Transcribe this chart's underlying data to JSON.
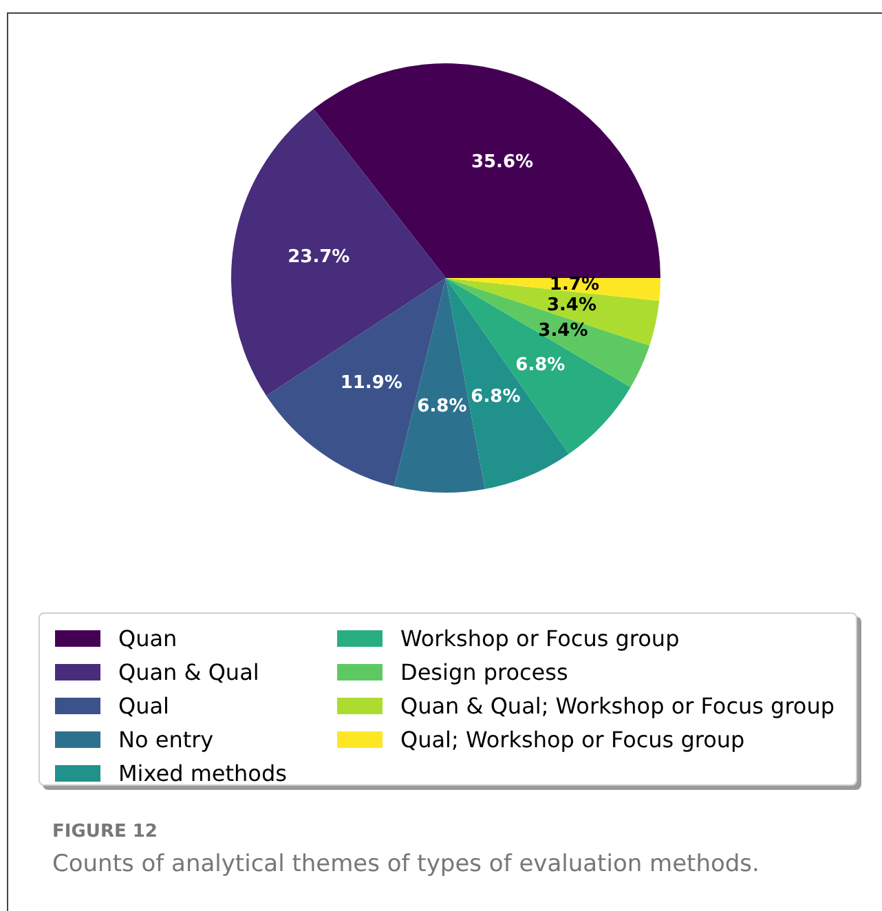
{
  "chart_data": {
    "type": "pie",
    "categories": [
      "Quan",
      "Quan & Qual",
      "Qual",
      "No entry",
      "Mixed methods",
      "Workshop or Focus group",
      "Design process",
      "Quan & Qual; Workshop or Focus group",
      "Qual; Workshop or Focus group"
    ],
    "values": [
      35.6,
      23.7,
      11.9,
      6.8,
      6.8,
      6.8,
      3.4,
      3.4,
      1.7
    ],
    "colors": [
      "#440154",
      "#472d7b",
      "#3b528b",
      "#2c728e",
      "#21918c",
      "#28ae80",
      "#5ec962",
      "#addc30",
      "#fde725"
    ],
    "value_labels": [
      "35.6%",
      "23.7%",
      "11.9%",
      "6.8%",
      "6.8%",
      "6.8%",
      "3.4%",
      "3.4%",
      "1.7%"
    ],
    "legend": "bottom",
    "annotations": [
      "FIGURE 12",
      "Counts of analytical themes of types of evaluation methods."
    ]
  }
}
